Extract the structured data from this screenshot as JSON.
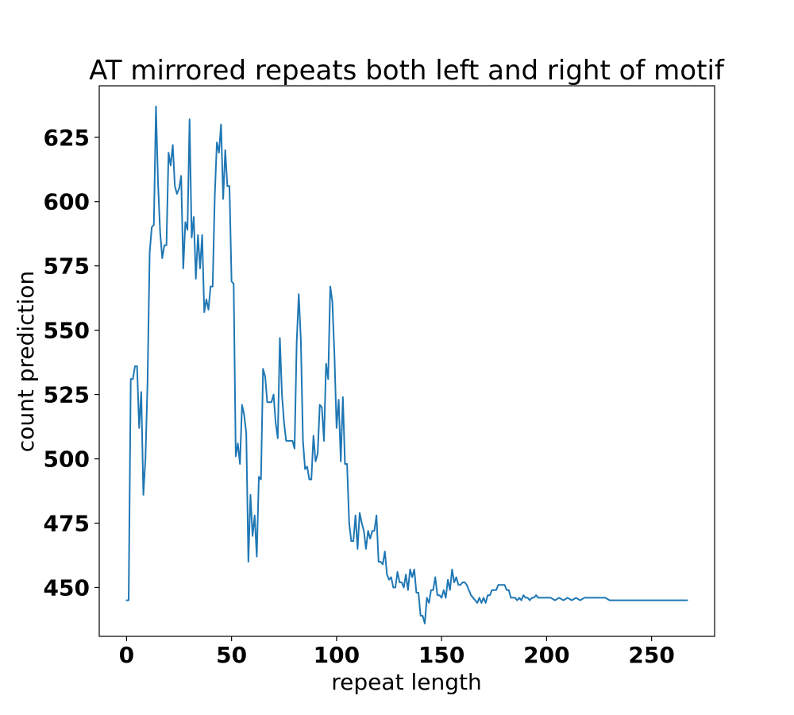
{
  "chart_data": {
    "type": "line",
    "title": "AT mirrored repeats both left and right of motif",
    "xlabel": "repeat length",
    "ylabel": "count prediction",
    "xlim": [
      -13,
      280
    ],
    "ylim": [
      431,
      645
    ],
    "xticks": [
      0,
      50,
      100,
      150,
      200,
      250
    ],
    "yticks": [
      450,
      475,
      500,
      525,
      550,
      575,
      600,
      625
    ],
    "grid": false,
    "legend": "none",
    "colors": {
      "series": "#1f77b4"
    },
    "series": [
      {
        "points": [
          [
            0,
            445
          ],
          [
            1,
            445
          ],
          [
            2,
            531
          ],
          [
            3,
            531
          ],
          [
            4,
            536
          ],
          [
            5,
            536
          ],
          [
            6,
            512
          ],
          [
            7,
            526
          ],
          [
            8,
            486
          ],
          [
            9,
            500
          ],
          [
            10,
            530
          ],
          [
            11,
            580
          ],
          [
            12,
            590
          ],
          [
            13,
            591
          ],
          [
            14,
            637
          ],
          [
            15,
            607
          ],
          [
            16,
            588
          ],
          [
            17,
            578
          ],
          [
            18,
            583
          ],
          [
            19,
            583
          ],
          [
            20,
            619
          ],
          [
            21,
            614
          ],
          [
            22,
            622
          ],
          [
            23,
            606
          ],
          [
            24,
            603
          ],
          [
            25,
            605
          ],
          [
            26,
            610
          ],
          [
            27,
            574
          ],
          [
            28,
            592
          ],
          [
            29,
            589
          ],
          [
            30,
            632
          ],
          [
            31,
            586
          ],
          [
            32,
            594
          ],
          [
            33,
            570
          ],
          [
            34,
            587
          ],
          [
            35,
            574
          ],
          [
            36,
            587
          ],
          [
            37,
            557
          ],
          [
            38,
            562
          ],
          [
            39,
            558
          ],
          [
            40,
            567
          ],
          [
            41,
            567
          ],
          [
            42,
            602
          ],
          [
            43,
            623
          ],
          [
            44,
            619
          ],
          [
            45,
            630
          ],
          [
            46,
            601
          ],
          [
            47,
            620
          ],
          [
            48,
            606
          ],
          [
            49,
            606
          ],
          [
            50,
            569
          ],
          [
            51,
            568
          ],
          [
            52,
            501
          ],
          [
            53,
            506
          ],
          [
            54,
            498
          ],
          [
            55,
            521
          ],
          [
            56,
            517
          ],
          [
            57,
            510
          ],
          [
            58,
            460
          ],
          [
            59,
            486
          ],
          [
            60,
            470
          ],
          [
            61,
            478
          ],
          [
            62,
            462
          ],
          [
            63,
            493
          ],
          [
            64,
            492
          ],
          [
            65,
            535
          ],
          [
            66,
            532
          ],
          [
            67,
            522
          ],
          [
            68,
            522
          ],
          [
            69,
            522
          ],
          [
            70,
            525
          ],
          [
            71,
            514
          ],
          [
            72,
            508
          ],
          [
            73,
            547
          ],
          [
            74,
            525
          ],
          [
            75,
            514
          ],
          [
            76,
            507
          ],
          [
            77,
            507
          ],
          [
            78,
            507
          ],
          [
            79,
            507
          ],
          [
            80,
            504
          ],
          [
            81,
            545
          ],
          [
            82,
            564
          ],
          [
            83,
            546
          ],
          [
            84,
            507
          ],
          [
            85,
            496
          ],
          [
            86,
            497
          ],
          [
            87,
            492
          ],
          [
            88,
            492
          ],
          [
            89,
            509
          ],
          [
            90,
            499
          ],
          [
            91,
            502
          ],
          [
            92,
            521
          ],
          [
            93,
            520
          ],
          [
            94,
            507
          ],
          [
            95,
            537
          ],
          [
            96,
            531
          ],
          [
            97,
            567
          ],
          [
            98,
            561
          ],
          [
            99,
            540
          ],
          [
            100,
            512
          ],
          [
            101,
            523
          ],
          [
            102,
            499
          ],
          [
            103,
            524
          ],
          [
            104,
            498
          ],
          [
            105,
            498
          ],
          [
            106,
            475
          ],
          [
            107,
            468
          ],
          [
            108,
            468
          ],
          [
            109,
            478
          ],
          [
            110,
            465
          ],
          [
            111,
            479
          ],
          [
            112,
            475
          ],
          [
            113,
            472
          ],
          [
            114,
            465
          ],
          [
            115,
            472
          ],
          [
            116,
            469
          ],
          [
            117,
            472
          ],
          [
            118,
            472
          ],
          [
            119,
            478
          ],
          [
            120,
            460
          ],
          [
            121,
            460
          ],
          [
            122,
            459
          ],
          [
            123,
            464
          ],
          [
            124,
            455
          ],
          [
            125,
            453
          ],
          [
            126,
            454
          ],
          [
            127,
            450
          ],
          [
            128,
            450
          ],
          [
            129,
            456
          ],
          [
            130,
            452
          ],
          [
            131,
            452
          ],
          [
            132,
            450
          ],
          [
            133,
            455
          ],
          [
            134,
            449
          ],
          [
            135,
            457
          ],
          [
            136,
            454
          ],
          [
            137,
            457
          ],
          [
            138,
            448
          ],
          [
            139,
            448
          ],
          [
            140,
            439
          ],
          [
            141,
            439
          ],
          [
            142,
            436
          ],
          [
            143,
            446
          ],
          [
            144,
            444
          ],
          [
            145,
            449
          ],
          [
            146,
            449
          ],
          [
            147,
            454
          ],
          [
            148,
            447
          ],
          [
            149,
            447
          ],
          [
            150,
            446
          ],
          [
            151,
            449
          ],
          [
            152,
            446
          ],
          [
            153,
            453
          ],
          [
            154,
            449
          ],
          [
            155,
            457
          ],
          [
            156,
            452
          ],
          [
            157,
            454
          ],
          [
            158,
            451
          ],
          [
            159,
            451
          ],
          [
            160,
            452
          ],
          [
            161,
            452
          ],
          [
            162,
            451
          ],
          [
            163,
            449
          ],
          [
            164,
            447
          ],
          [
            165,
            446
          ],
          [
            166,
            445
          ],
          [
            167,
            444
          ],
          [
            168,
            446
          ],
          [
            169,
            444
          ],
          [
            170,
            446
          ],
          [
            171,
            444
          ],
          [
            172,
            447
          ],
          [
            173,
            447
          ],
          [
            174,
            449
          ],
          [
            175,
            449
          ],
          [
            176,
            449
          ],
          [
            177,
            451
          ],
          [
            178,
            451
          ],
          [
            179,
            451
          ],
          [
            180,
            451
          ],
          [
            181,
            449
          ],
          [
            182,
            449
          ],
          [
            183,
            446
          ],
          [
            184,
            446
          ],
          [
            185,
            446
          ],
          [
            186,
            445
          ],
          [
            187,
            446
          ],
          [
            188,
            445
          ],
          [
            189,
            447
          ],
          [
            190,
            446
          ],
          [
            191,
            446
          ],
          [
            192,
            445
          ],
          [
            193,
            446
          ],
          [
            194,
            446
          ],
          [
            195,
            447
          ],
          [
            196,
            446
          ],
          [
            197,
            446
          ],
          [
            198,
            446
          ],
          [
            199,
            446
          ],
          [
            200,
            446
          ],
          [
            202,
            446
          ],
          [
            204,
            445
          ],
          [
            206,
            446
          ],
          [
            208,
            445
          ],
          [
            210,
            446
          ],
          [
            212,
            445
          ],
          [
            214,
            446
          ],
          [
            216,
            445
          ],
          [
            218,
            446
          ],
          [
            220,
            446
          ],
          [
            222,
            446
          ],
          [
            224,
            446
          ],
          [
            226,
            446
          ],
          [
            228,
            446
          ],
          [
            230,
            445
          ],
          [
            232,
            445
          ],
          [
            234,
            445
          ],
          [
            236,
            445
          ],
          [
            240,
            445
          ],
          [
            245,
            445
          ],
          [
            250,
            445
          ],
          [
            255,
            445
          ],
          [
            260,
            445
          ],
          [
            265,
            445
          ],
          [
            267,
            445
          ]
        ]
      }
    ]
  }
}
